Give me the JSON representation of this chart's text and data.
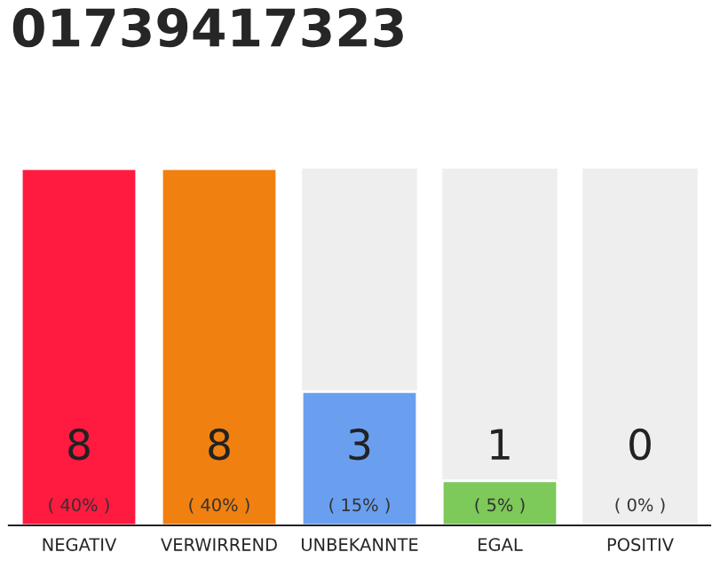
{
  "chart_data": {
    "type": "bar",
    "title": "01739417323",
    "categories": [
      "NEGATIV",
      "VERWIRREND",
      "UNBEKANNTE",
      "EGAL",
      "POSITIV"
    ],
    "values": [
      8,
      8,
      3,
      1,
      0
    ],
    "colors": [
      "#ff1a40",
      "#f08010",
      "#6a9ff0",
      "#7dc95a",
      null
    ],
    "value_labels": [
      "8\n( 40% )",
      "8\n( 40% )",
      "3\n( 15% )",
      "1\n( 5% )",
      "0\n( 0% )"
    ],
    "ylim": [
      0,
      8
    ],
    "grid": false,
    "legend": false
  }
}
